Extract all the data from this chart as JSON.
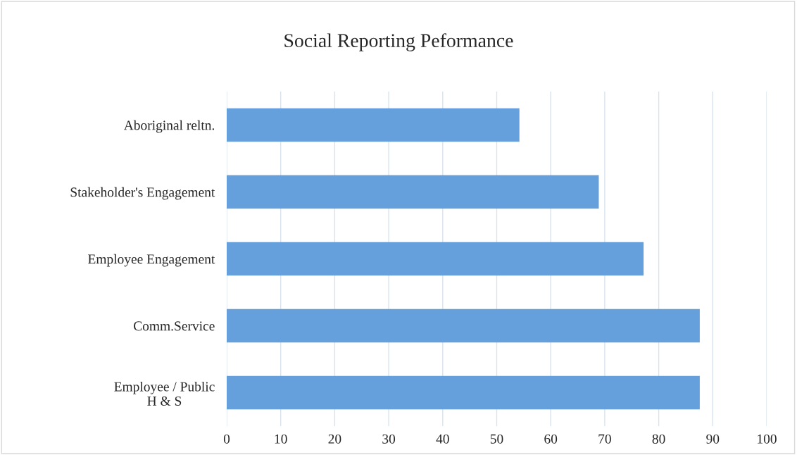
{
  "chart_data": {
    "type": "bar",
    "orientation": "horizontal",
    "title": "Social Reporting Peformance",
    "categories": [
      "Aboriginal reltn.",
      "Stakeholder's Engagement",
      "Employee Engagement",
      "Comm.Service",
      "Employee / Public\nH & S"
    ],
    "values": [
      54.2,
      68.9,
      77.2,
      87.6,
      87.6
    ],
    "color": "#659fdc",
    "xlim": [
      0,
      100
    ],
    "xticks": [
      0,
      10,
      20,
      30,
      40,
      50,
      60,
      70,
      80,
      90,
      100
    ],
    "grid": "x"
  }
}
